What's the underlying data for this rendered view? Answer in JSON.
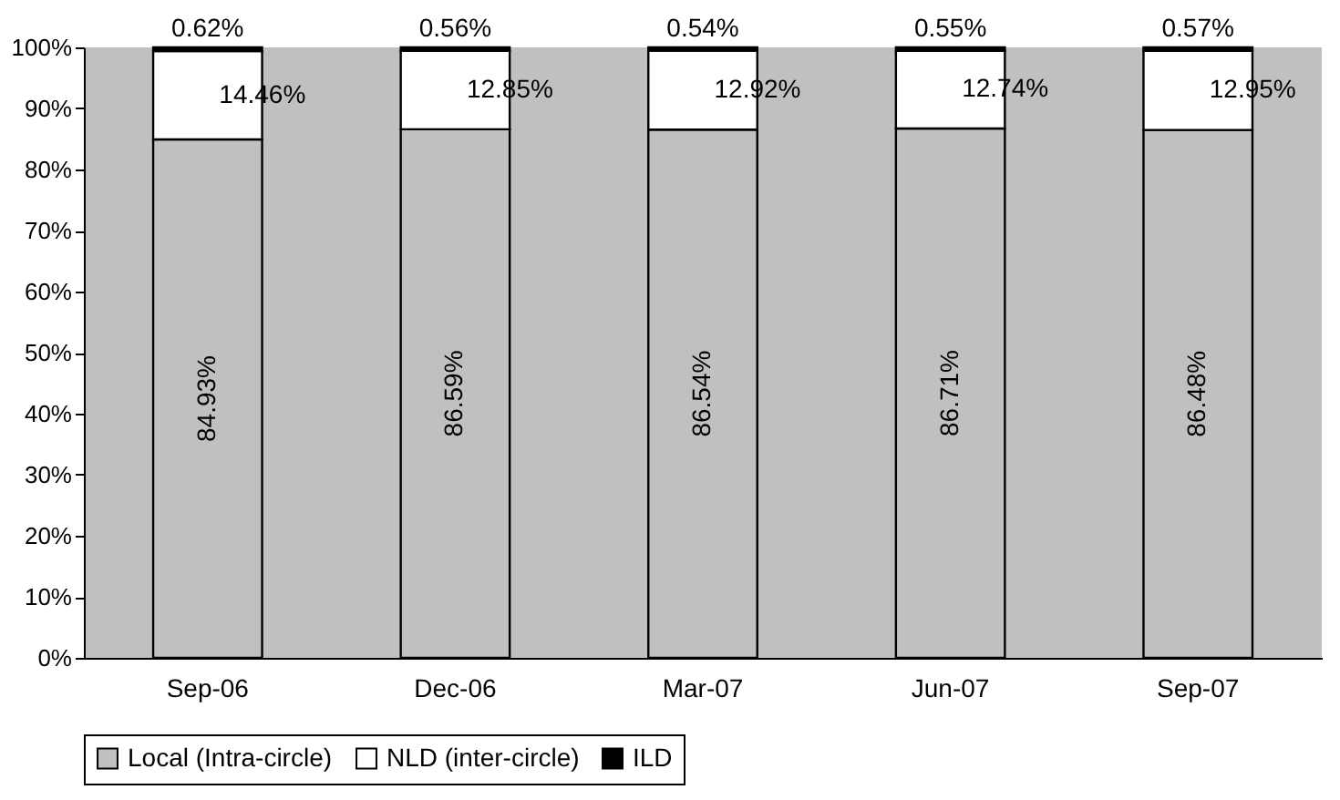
{
  "chart_data": {
    "type": "bar",
    "stacked": true,
    "categories": [
      "Sep-06",
      "Dec-06",
      "Mar-07",
      "Jun-07",
      "Sep-07"
    ],
    "series": [
      {
        "name": "Local (Intra-circle)",
        "color": "#c0c0c0",
        "values": [
          84.93,
          86.59,
          86.54,
          86.71,
          86.48
        ],
        "value_labels": [
          "84.93%",
          "86.59%",
          "86.54%",
          "86.71%",
          "86.48%"
        ]
      },
      {
        "name": "NLD (inter-circle)",
        "color": "#ffffff",
        "values": [
          14.46,
          12.85,
          12.92,
          12.74,
          12.95
        ],
        "value_labels": [
          "14.46%",
          "12.85%",
          "12.92%",
          "12.74%",
          "12.95%"
        ]
      },
      {
        "name": "ILD",
        "color": "#000000",
        "values": [
          0.62,
          0.56,
          0.54,
          0.55,
          0.57
        ],
        "value_labels": [
          "0.62%",
          "0.56%",
          "0.54%",
          "0.55%",
          "0.57%"
        ]
      }
    ],
    "ylim": [
      0,
      100
    ],
    "yticks": [
      {
        "value": 0,
        "label": "0%"
      },
      {
        "value": 10,
        "label": "10%"
      },
      {
        "value": 20,
        "label": "20%"
      },
      {
        "value": 30,
        "label": "30%"
      },
      {
        "value": 40,
        "label": "40%"
      },
      {
        "value": 50,
        "label": "50%"
      },
      {
        "value": 60,
        "label": "60%"
      },
      {
        "value": 70,
        "label": "70%"
      },
      {
        "value": 80,
        "label": "80%"
      },
      {
        "value": 90,
        "label": "90%"
      },
      {
        "value": 100,
        "label": "100%"
      }
    ],
    "grid": false,
    "legend": "bottom"
  }
}
